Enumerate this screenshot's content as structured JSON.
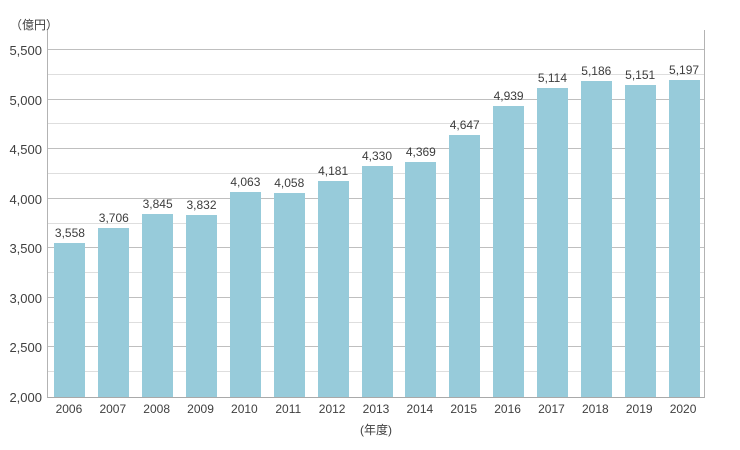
{
  "chart_data": {
    "type": "bar",
    "title": "",
    "categories": [
      "2006",
      "2007",
      "2008",
      "2009",
      "2010",
      "2011",
      "2012",
      "2013",
      "2014",
      "2015",
      "2016",
      "2017",
      "2018",
      "2019",
      "2020"
    ],
    "values": [
      3558,
      3706,
      3845,
      3832,
      4063,
      4058,
      4181,
      4330,
      4369,
      4647,
      4939,
      5114,
      5186,
      5151,
      5197
    ],
    "value_labels": [
      "3,558",
      "3,706",
      "3,845",
      "3,832",
      "4,063",
      "4,058",
      "4,181",
      "4,330",
      "4,369",
      "4,647",
      "4,939",
      "5,114",
      "5,186",
      "5,151",
      "5,197"
    ],
    "y_axis": {
      "unit_label": "（億円）",
      "min": 2000,
      "max": 5500,
      "major_step": 500,
      "minor_step": 250,
      "tick_labels": [
        "2,000",
        "2,500",
        "3,000",
        "3,500",
        "4,000",
        "4,500",
        "5,000",
        "5,500"
      ]
    },
    "x_axis": {
      "unit_label": "(年度)"
    },
    "grid": true,
    "legend": "none",
    "colors": {
      "bar": "#97cbda",
      "grid_major": "#bfbfbf",
      "grid_minor": "#dedede",
      "axis": "#a9a9a9",
      "text": "#404040"
    }
  }
}
